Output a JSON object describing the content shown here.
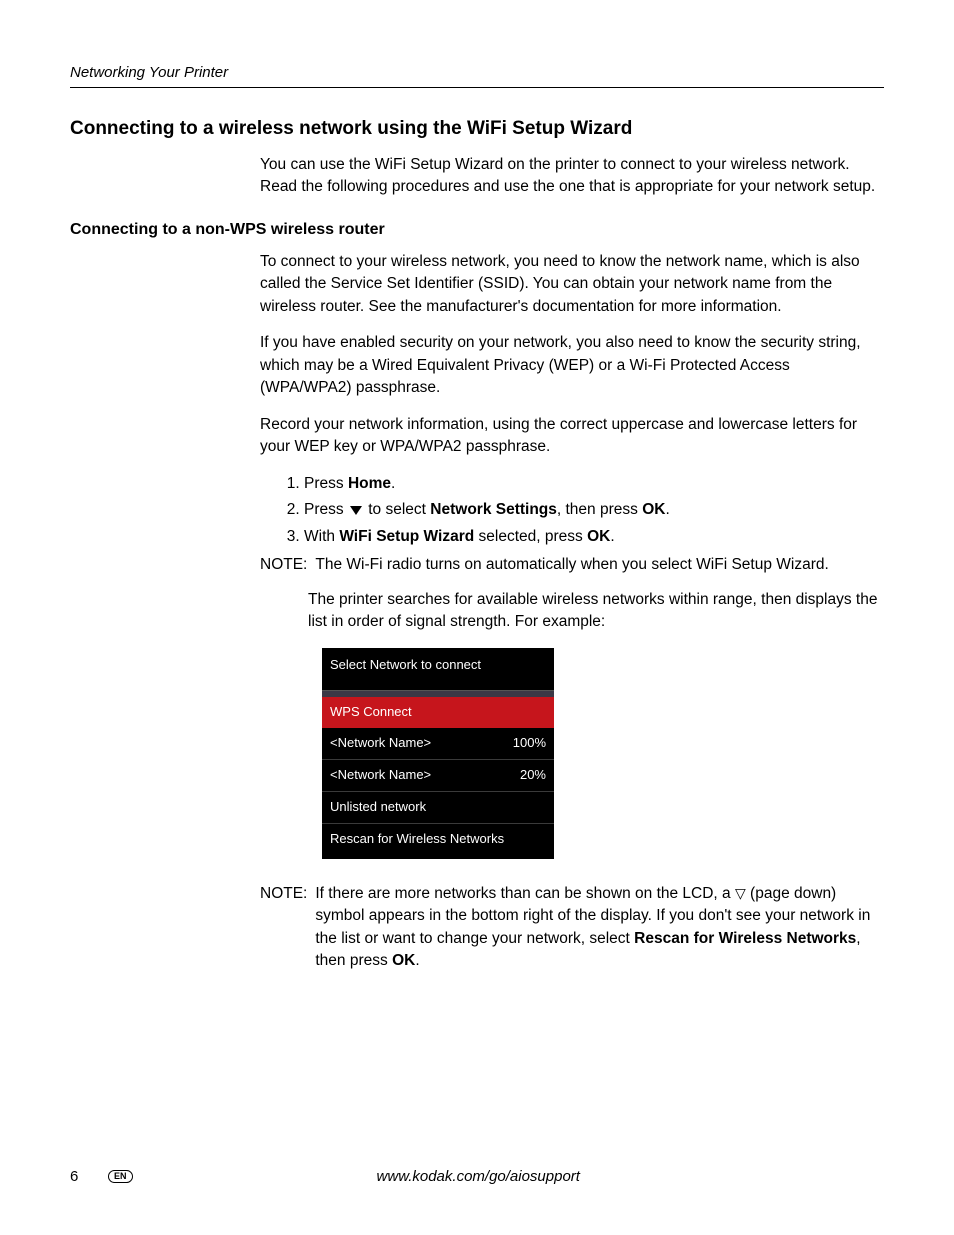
{
  "runningHead": "Networking Your Printer",
  "h2": "Connecting to a wireless network using the WiFi Setup Wizard",
  "intro": "You can use the WiFi Setup Wizard on the printer to connect to your wireless network. Read the following procedures and use the one that is appropriate for your network setup.",
  "h3": "Connecting to a non-WPS wireless router",
  "para1": "To connect to your wireless network, you need to know the network name, which is also called the Service Set Identifier (SSID). You can obtain your network name from the wireless router. See the manufacturer's documentation for more information.",
  "para2": "If you have enabled security on your network, you also need to know the security string, which may be a Wired Equivalent Privacy (WEP) or a Wi-Fi Protected Access (WPA/WPA2) passphrase.",
  "para3": "Record your network information, using the correct uppercase and lowercase letters for your WEP key or WPA/WPA2 passphrase.",
  "steps": {
    "s1_pre": "Press ",
    "s1_bold": "Home",
    "s1_post": ".",
    "s2_pre": "Press ",
    "s2_mid": " to select ",
    "s2_bold1": "Network Settings",
    "s2_mid2": ", then press ",
    "s2_bold2": "OK",
    "s2_post": ".",
    "s3_pre": "With ",
    "s3_bold1": "WiFi Setup Wizard",
    "s3_mid": " selected, press ",
    "s3_bold2": "OK",
    "s3_post": "."
  },
  "noteLabel": "NOTE:",
  "note1": "The Wi-Fi radio turns on automatically when you select WiFi Setup Wizard.",
  "afterSteps": "The printer searches for available wireless networks within range, then displays the list in order of signal strength. For example:",
  "lcd": {
    "header": "Select Network to connect",
    "rows": [
      {
        "label": "WPS Connect",
        "value": "",
        "selected": true
      },
      {
        "label": "<Network Name>",
        "value": "100%",
        "selected": false
      },
      {
        "label": "<Network Name>",
        "value": "20%",
        "selected": false
      },
      {
        "label": "Unlisted network",
        "value": "",
        "selected": false
      },
      {
        "label": "Rescan for Wireless Networks",
        "value": "",
        "selected": false
      }
    ],
    "bg": "#000000",
    "fg": "#ffffff",
    "selected_bg": "#c6151c",
    "sep_bg": "#3b3846",
    "border": "#3a3a3a"
  },
  "note2_pre": "If there are more networks than can be shown on the LCD, a ",
  "note2_mid": " (page down) symbol appears in the bottom right of the display. If you don't see your network in the list or want to change your network, select ",
  "note2_bold1": "Rescan for Wireless Networks",
  "note2_mid2": ", then press ",
  "note2_bold2": "OK",
  "note2_post": ".",
  "footer": {
    "pageNum": "6",
    "lang": "EN",
    "url": "www.kodak.com/go/aiosupport"
  }
}
